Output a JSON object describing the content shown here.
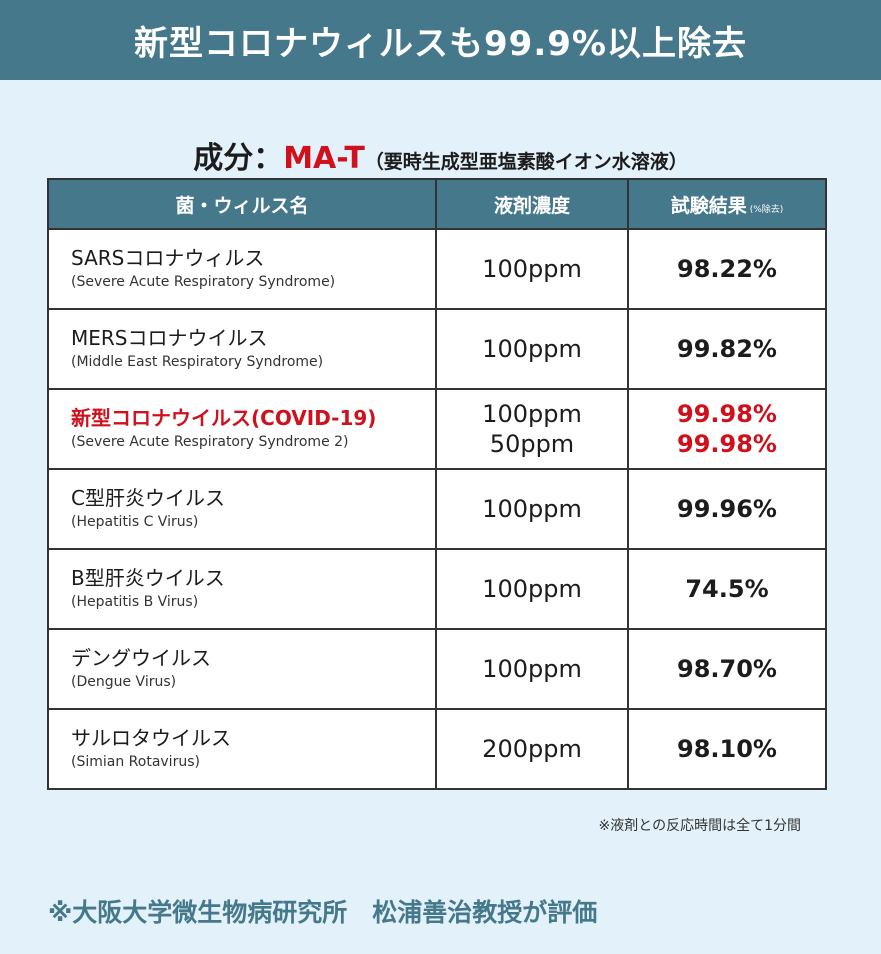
{
  "banner": {
    "title": "新型コロナウィルスも99.9%以上除去"
  },
  "ingredient": {
    "label": "成分：",
    "code": "MA-T",
    "description": "（要時生成型亜塩素酸イオン水溶液）"
  },
  "table": {
    "headers": {
      "name": "菌・ウィルス名",
      "concentration": "液剤濃度",
      "result": "試験結果",
      "result_note": "(%除去)"
    },
    "rows": [
      {
        "name_jp": "SARSコロナウィルス",
        "name_en": "(Severe Acute Respiratory Syndrome)",
        "conc": [
          "100ppm"
        ],
        "result": [
          "98.22%"
        ]
      },
      {
        "name_jp": "MERSコロナウイルス",
        "name_en": "(Middle East Respiratory Syndrome)",
        "conc": [
          "100ppm"
        ],
        "result": [
          "99.82%"
        ]
      },
      {
        "name_jp": "新型コロナウイルス(COVID-19)",
        "name_en": "(Severe Acute Respiratory Syndrome  2)",
        "conc": [
          "100ppm",
          "50ppm"
        ],
        "result": [
          "99.98%",
          "99.98%"
        ],
        "highlight": true
      },
      {
        "name_jp": "C型肝炎ウイルス",
        "name_en": "(Hepatitis C Virus)",
        "conc": [
          "100ppm"
        ],
        "result": [
          "99.96%"
        ]
      },
      {
        "name_jp": "B型肝炎ウイルス",
        "name_en": "(Hepatitis B Virus)",
        "conc": [
          "100ppm"
        ],
        "result": [
          "74.5%"
        ]
      },
      {
        "name_jp": "デングウイルス",
        "name_en": "(Dengue Virus)",
        "conc": [
          "100ppm"
        ],
        "result": [
          "98.70%"
        ]
      },
      {
        "name_jp": "サルロタウイルス",
        "name_en": "(Simian Rotavirus)",
        "conc": [
          "200ppm"
        ],
        "result": [
          "98.10%"
        ]
      }
    ]
  },
  "footnote": "※液剤との反応時間は全て1分間",
  "evaluator": "※大阪大学微生物病研究所　松浦善治教授が評価",
  "colors": {
    "header": "#46788c",
    "accent": "#d0101c",
    "background": "#e3f2fa"
  }
}
